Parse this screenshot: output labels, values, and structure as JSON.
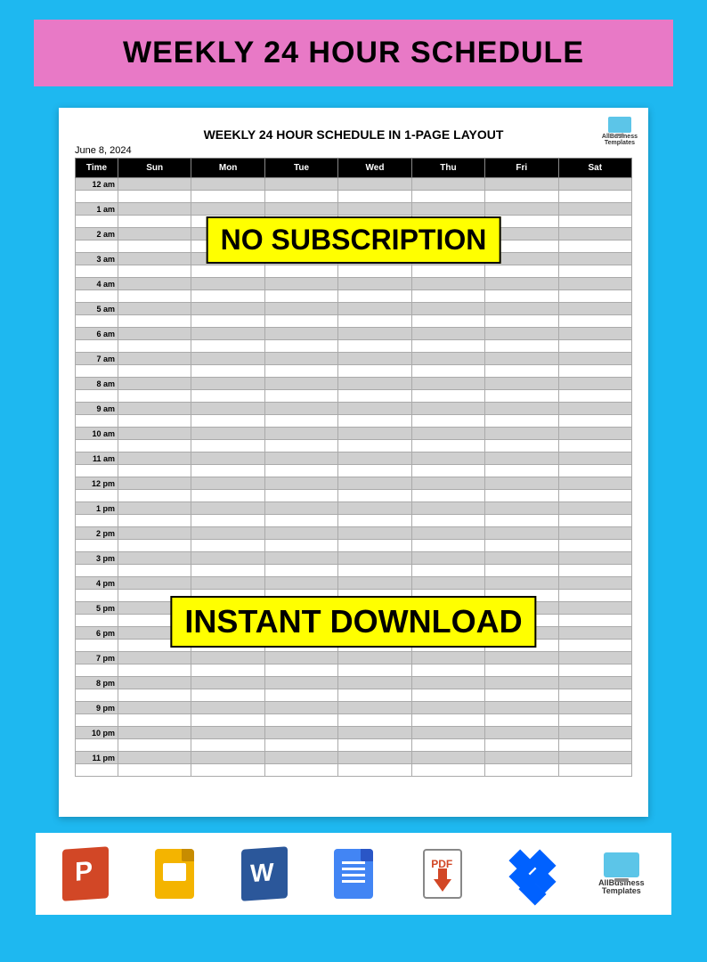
{
  "banner": {
    "title": "WEEKLY 24 HOUR SCHEDULE"
  },
  "document": {
    "title": "WEEKLY 24 HOUR SCHEDULE IN 1-PAGE LAYOUT",
    "date": "June 8, 2024",
    "brand_top": "AllBusiness\nTemplates",
    "columns": [
      "Time",
      "Sun",
      "Mon",
      "Tue",
      "Wed",
      "Thu",
      "Fri",
      "Sat"
    ],
    "hours": [
      "12 am",
      "1 am",
      "2 am",
      "3 am",
      "4 am",
      "5 am",
      "6 am",
      "7 am",
      "8 am",
      "9 am",
      "10 am",
      "11 am",
      "12 pm",
      "1 pm",
      "2 pm",
      "3 pm",
      "4 pm",
      "5 pm",
      "6 pm",
      "7 pm",
      "8 pm",
      "9 pm",
      "10 pm",
      "11 pm"
    ],
    "colors": {
      "page_bg": "#1eb8f0",
      "banner_bg": "#e879c6",
      "header_bg": "#000000",
      "header_fg": "#ffffff",
      "row_shade": "#cfcfcf",
      "row_plain": "#ffffff",
      "overlay_bg": "#ffff00",
      "overlay_border": "#000000"
    }
  },
  "overlays": {
    "line1": "NO SUBSCRIPTION",
    "line2": "INSTANT DOWNLOAD"
  },
  "footer": {
    "icons": [
      "powerpoint",
      "google-slides",
      "word",
      "google-docs",
      "pdf-download",
      "dropbox",
      "allbusinesstemplates"
    ],
    "pdf_label": "PDF",
    "abt_label": "AllBusiness\nTemplates"
  }
}
